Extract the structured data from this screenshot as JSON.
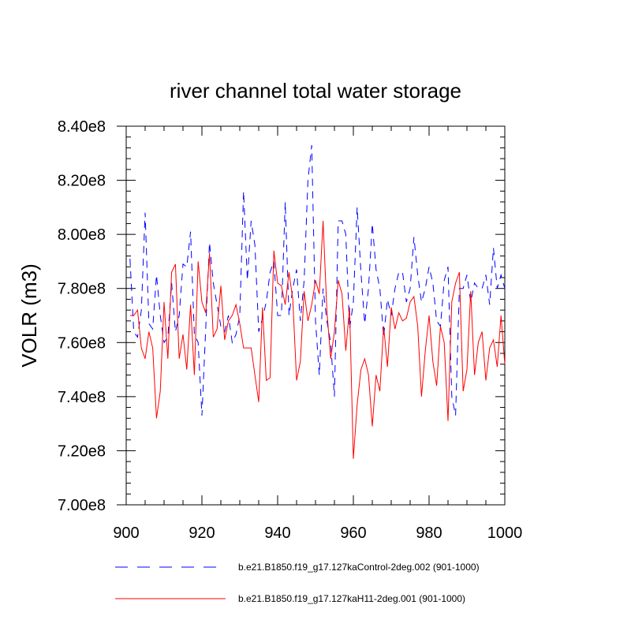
{
  "chart_data": {
    "type": "line",
    "title": "river channel total water storage",
    "xlabel": "",
    "ylabel": "VOLR  (m3)",
    "xlim": [
      900,
      1000
    ],
    "ylim": [
      700000000,
      840000000
    ],
    "x_ticks": [
      900,
      920,
      940,
      960,
      980,
      1000
    ],
    "x_tick_labels": [
      "900",
      "920",
      "940",
      "960",
      "980",
      "1000"
    ],
    "y_ticks": [
      700000000,
      720000000,
      740000000,
      760000000,
      780000000,
      800000000,
      820000000,
      840000000
    ],
    "y_tick_labels": [
      "7.00e8",
      "7.20e8",
      "7.40e8",
      "7.60e8",
      "7.80e8",
      "8.00e8",
      "8.20e8",
      "8.40e8"
    ],
    "x_start": 901,
    "legend_position": "bottom",
    "series": [
      {
        "name": "b.e21.B1850.f19_g17.127kaControl-2deg.002 (901-1000)",
        "color": "#0000ff",
        "style": "dashed",
        "values": [
          791,
          764,
          762,
          772,
          808,
          767,
          765,
          785,
          770,
          760,
          762,
          782,
          764,
          770,
          789,
          788,
          801,
          763,
          760,
          733,
          765,
          797,
          782,
          774,
          766,
          764,
          770,
          760,
          763,
          770,
          816,
          783,
          805,
          796,
          764,
          769,
          775,
          786,
          790,
          770,
          770,
          812,
          770,
          780,
          787,
          768,
          783,
          820,
          833,
          768,
          748,
          780,
          768,
          760,
          740,
          805,
          805,
          800,
          765,
          775,
          810,
          786,
          767,
          780,
          804,
          787,
          780,
          762,
          776,
          770,
          780,
          786,
          786,
          775,
          780,
          799,
          785,
          775,
          780,
          788,
          782,
          768,
          766,
          783,
          788,
          740,
          733,
          780,
          780,
          785,
          775,
          782,
          780,
          780,
          785,
          774,
          795,
          780,
          785,
          780
        ]
      },
      {
        "name": "b.e21.B1850.f19_g17.127kaH11-2deg.001 (901-1000)",
        "color": "#ff0000",
        "style": "solid",
        "values": [
          770,
          770,
          772,
          758,
          754,
          764,
          758,
          732,
          742,
          775,
          754,
          786,
          789,
          754,
          763,
          750,
          774,
          748,
          790,
          775,
          771,
          793,
          762,
          765,
          781,
          761,
          768,
          770,
          774,
          767,
          758,
          758,
          758,
          748,
          738,
          773,
          746,
          747,
          794,
          782,
          781,
          774,
          786,
          776,
          746,
          753,
          779,
          768,
          774,
          783,
          778,
          805,
          772,
          754,
          764,
          783,
          778,
          757,
          773,
          717,
          737,
          750,
          754,
          748,
          729,
          748,
          742,
          766,
          751,
          773,
          765,
          771,
          768,
          769,
          775,
          777,
          766,
          740,
          757,
          770,
          753,
          744,
          766,
          760,
          731,
          775,
          782,
          786,
          742,
          750,
          779,
          748,
          760,
          764,
          746,
          758,
          761,
          751,
          770,
          752
        ]
      }
    ]
  }
}
